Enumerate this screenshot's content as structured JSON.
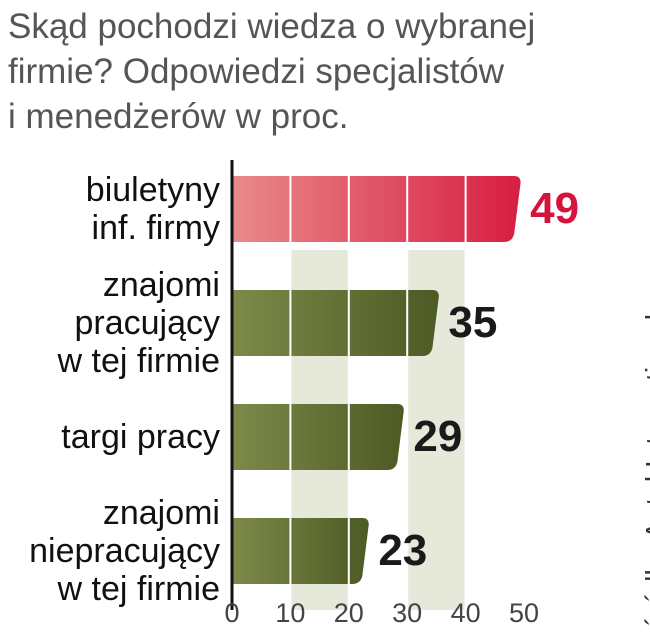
{
  "chart_data": {
    "type": "bar",
    "orientation": "horizontal",
    "title": "Skąd pochodzi wiedza o wybranej\nfirmie? Odpowiedzi specjalistów\ni menedżerów w proc.",
    "categories": [
      "biuletyny\ninf. firmy",
      "znajomi\npracujący\nw tej firmie",
      "targi pracy",
      "znajomi\nniepracujący\nw tej firmie"
    ],
    "values": [
      49,
      35,
      29,
      23
    ],
    "colors": [
      "#d81e42",
      "#56632c",
      "#56632c",
      "#56632c"
    ],
    "label_colors": [
      "#d4143a",
      "#1a1a1a",
      "#1a1a1a",
      "#1a1a1a"
    ],
    "xlim": [
      0,
      50
    ],
    "xticks": [
      0,
      10,
      20,
      30,
      40,
      50
    ],
    "grid": true,
    "source": "źródło: Antal International"
  }
}
